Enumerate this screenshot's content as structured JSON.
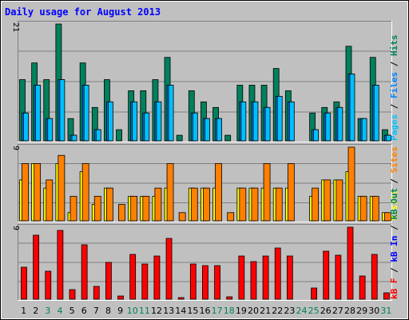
{
  "title": "Daily usage for August 2013",
  "colors": {
    "background": "#c0c0c0",
    "title": "#0000ff",
    "grid": "#808080",
    "hits": "#00805c",
    "files": "#0080ff",
    "pages": "#00c0ff",
    "visits": "#ffff00",
    "sites": "#ff8000",
    "kb_in": "#0000ff",
    "kb_f": "#ff0000",
    "weekend": "#00805c",
    "weekday": "#000000"
  },
  "chart_data": [
    {
      "type": "bar",
      "panel": "top",
      "scale_label": "21",
      "ylim": [
        0,
        21
      ],
      "legend": [
        {
          "text": "Pages",
          "color": "#00c0ff"
        },
        {
          "text": " / ",
          "color": "#000000"
        },
        {
          "text": "Files",
          "color": "#0080ff"
        },
        {
          "text": " / ",
          "color": "#000000"
        },
        {
          "text": "Hits",
          "color": "#00805c"
        }
      ],
      "categories": [
        "1",
        "2",
        "3",
        "4",
        "5",
        "6",
        "7",
        "8",
        "9",
        "10",
        "11",
        "12",
        "13",
        "14",
        "15",
        "16",
        "17",
        "18",
        "19",
        "20",
        "21",
        "22",
        "23",
        "24",
        "25",
        "26",
        "27",
        "28",
        "29",
        "30",
        "31"
      ],
      "series": [
        {
          "name": "Hits",
          "color": "#00805c",
          "values": [
            11,
            14,
            11,
            21,
            4,
            14,
            6,
            11,
            2,
            9,
            9,
            11,
            15,
            1,
            9,
            7,
            6,
            1,
            10,
            10,
            10,
            13,
            9,
            0,
            5,
            6,
            7,
            17,
            4,
            15,
            2
          ]
        },
        {
          "name": "Files",
          "color": "#0080ff",
          "values": [
            5,
            10,
            4,
            11,
            1,
            10,
            2,
            7,
            0,
            7,
            5,
            7,
            10,
            0,
            5,
            4,
            4,
            0,
            7,
            7,
            6,
            8,
            7,
            0,
            2,
            5,
            6,
            12,
            4,
            10,
            1
          ]
        },
        {
          "name": "Pages",
          "color": "#00c0ff",
          "values": [
            5,
            10,
            4,
            11,
            1,
            10,
            2,
            7,
            0,
            7,
            5,
            7,
            10,
            0,
            5,
            4,
            4,
            0,
            7,
            7,
            6,
            8,
            7,
            0,
            2,
            5,
            6,
            12,
            4,
            10,
            1
          ]
        }
      ]
    },
    {
      "type": "bar",
      "panel": "middle",
      "scale_label": "9",
      "ylim": [
        0,
        9
      ],
      "legend": [
        {
          "text": "Visits",
          "color": "#ffff00"
        },
        {
          "text": " / ",
          "color": "#000000"
        },
        {
          "text": "Sites",
          "color": "#ff8000"
        }
      ],
      "categories": [
        "1",
        "2",
        "3",
        "4",
        "5",
        "6",
        "7",
        "8",
        "9",
        "10",
        "11",
        "12",
        "13",
        "14",
        "15",
        "16",
        "17",
        "18",
        "19",
        "20",
        "21",
        "22",
        "23",
        "24",
        "25",
        "26",
        "27",
        "28",
        "29",
        "30",
        "31"
      ],
      "series": [
        {
          "name": "Visits",
          "color": "#ffff00",
          "values": [
            5,
            7,
            4,
            7,
            1,
            6,
            2,
            4,
            0,
            3,
            3,
            3,
            4,
            0,
            4,
            4,
            4,
            0,
            4,
            4,
            4,
            4,
            4,
            0,
            3,
            5,
            5,
            6,
            3,
            3,
            1
          ]
        },
        {
          "name": "Sites",
          "color": "#ff8000",
          "values": [
            7,
            7,
            5,
            8,
            3,
            7,
            3,
            4,
            2,
            3,
            3,
            4,
            7,
            1,
            4,
            4,
            7,
            1,
            4,
            4,
            7,
            4,
            7,
            0,
            4,
            5,
            5,
            9,
            3,
            3,
            1
          ]
        }
      ]
    },
    {
      "type": "bar",
      "panel": "bottom",
      "scale_label": "9",
      "ylim": [
        0,
        9
      ],
      "legend": [
        {
          "text": "kB F",
          "color": "#ff0000"
        },
        {
          "text": " / ",
          "color": "#000000"
        },
        {
          "text": "kB In",
          "color": "#0000ff"
        },
        {
          "text": " / ",
          "color": "#000000"
        },
        {
          "text": "kB Out",
          "color": "#00805c"
        }
      ],
      "categories": [
        "1",
        "2",
        "3",
        "4",
        "5",
        "6",
        "7",
        "8",
        "9",
        "10",
        "11",
        "12",
        "13",
        "14",
        "15",
        "16",
        "17",
        "18",
        "19",
        "20",
        "21",
        "22",
        "23",
        "24",
        "25",
        "26",
        "27",
        "28",
        "29",
        "30",
        "31"
      ],
      "series": [
        {
          "name": "kB F",
          "color": "#ff0000",
          "values": [
            4,
            8,
            3.5,
            8.6,
            1.2,
            6.8,
            1.6,
            4.6,
            0.4,
            5.6,
            4.4,
            5.4,
            7.6,
            0.2,
            4.4,
            4.2,
            4.2,
            0.3,
            5.4,
            4.7,
            5.4,
            6.4,
            5.4,
            0,
            1.4,
            6,
            5.5,
            9,
            2.9,
            5.6,
            0.8
          ]
        }
      ]
    }
  ]
}
